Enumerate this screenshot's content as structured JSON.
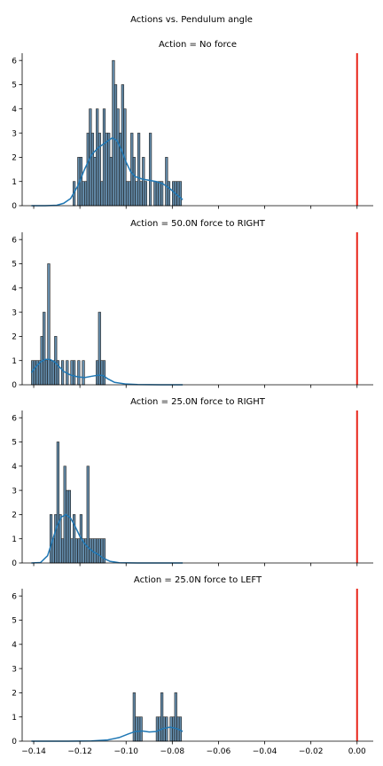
{
  "figure": {
    "suptitle": "Actions vs. Pendulum angle",
    "colors": {
      "bar_fill": "#3d6f96",
      "bar_edge": "#1c1c1c",
      "kde": "#1f77b4",
      "ref_line": "#e8251a"
    }
  },
  "chart_data": [
    {
      "type": "histogram+kde",
      "title": "Action = No force",
      "xlim": [
        -0.145,
        0.007
      ],
      "ylim": [
        0,
        6.3
      ],
      "xticks": [
        -0.14,
        -0.12,
        -0.1,
        -0.08,
        -0.06,
        -0.04,
        -0.02,
        0.0
      ],
      "xtick_labels": [],
      "yticks": [
        0,
        1,
        2,
        3,
        4,
        5,
        6
      ],
      "ytick_labels": [
        "0",
        "1",
        "2",
        "3",
        "4",
        "5",
        "6"
      ],
      "ref_line_x": 0.0,
      "bins": [
        [
          -0.1225,
          1
        ],
        [
          -0.1205,
          2
        ],
        [
          -0.1195,
          2
        ],
        [
          -0.1185,
          1
        ],
        [
          -0.1175,
          1
        ],
        [
          -0.1165,
          3
        ],
        [
          -0.1155,
          4
        ],
        [
          -0.1145,
          3
        ],
        [
          -0.1135,
          2
        ],
        [
          -0.1125,
          4
        ],
        [
          -0.1115,
          3
        ],
        [
          -0.1105,
          1
        ],
        [
          -0.1095,
          4
        ],
        [
          -0.1085,
          3
        ],
        [
          -0.1075,
          3
        ],
        [
          -0.1065,
          2
        ],
        [
          -0.1055,
          6
        ],
        [
          -0.1045,
          5
        ],
        [
          -0.1035,
          4
        ],
        [
          -0.1025,
          3
        ],
        [
          -0.1015,
          5
        ],
        [
          -0.1005,
          4
        ],
        [
          -0.0995,
          1
        ],
        [
          -0.0985,
          1
        ],
        [
          -0.0975,
          3
        ],
        [
          -0.0965,
          2
        ],
        [
          -0.0955,
          1
        ],
        [
          -0.0945,
          3
        ],
        [
          -0.0935,
          1
        ],
        [
          -0.0925,
          2
        ],
        [
          -0.0915,
          1
        ],
        [
          -0.0895,
          3
        ],
        [
          -0.0875,
          1
        ],
        [
          -0.0865,
          1
        ],
        [
          -0.0855,
          1
        ],
        [
          -0.0845,
          1
        ],
        [
          -0.0825,
          2
        ],
        [
          -0.0815,
          1
        ],
        [
          -0.0795,
          1
        ],
        [
          -0.0785,
          1
        ],
        [
          -0.0775,
          1
        ],
        [
          -0.0765,
          1
        ]
      ],
      "kde": [
        [
          -0.141,
          0.0
        ],
        [
          -0.135,
          0.0
        ],
        [
          -0.13,
          0.02
        ],
        [
          -0.127,
          0.1
        ],
        [
          -0.124,
          0.3
        ],
        [
          -0.121,
          0.8
        ],
        [
          -0.118,
          1.5
        ],
        [
          -0.115,
          2.1
        ],
        [
          -0.112,
          2.4
        ],
        [
          -0.109,
          2.6
        ],
        [
          -0.106,
          2.8
        ],
        [
          -0.104,
          2.7
        ],
        [
          -0.102,
          2.3
        ],
        [
          -0.1,
          1.8
        ],
        [
          -0.098,
          1.4
        ],
        [
          -0.096,
          1.2
        ],
        [
          -0.093,
          1.1
        ],
        [
          -0.09,
          1.05
        ],
        [
          -0.087,
          1.0
        ],
        [
          -0.084,
          0.9
        ],
        [
          -0.081,
          0.7
        ],
        [
          -0.078,
          0.45
        ],
        [
          -0.0755,
          0.25
        ]
      ]
    },
    {
      "type": "histogram+kde",
      "title": "Action = 50.0N force to RIGHT",
      "xlim": [
        -0.145,
        0.007
      ],
      "ylim": [
        0,
        6.3
      ],
      "xticks": [
        -0.14,
        -0.12,
        -0.1,
        -0.08,
        -0.06,
        -0.04,
        -0.02,
        0.0
      ],
      "xtick_labels": [],
      "yticks": [
        0,
        1,
        2,
        3,
        4,
        5,
        6
      ],
      "ytick_labels": [
        "0",
        "1",
        "2",
        "3",
        "4",
        "5",
        "6"
      ],
      "ref_line_x": 0.0,
      "bins": [
        [
          -0.1405,
          1
        ],
        [
          -0.1395,
          1
        ],
        [
          -0.1385,
          1
        ],
        [
          -0.1375,
          1
        ],
        [
          -0.1365,
          2
        ],
        [
          -0.1355,
          3
        ],
        [
          -0.1345,
          1
        ],
        [
          -0.1335,
          5
        ],
        [
          -0.1325,
          1
        ],
        [
          -0.1315,
          1
        ],
        [
          -0.1305,
          2
        ],
        [
          -0.1295,
          1
        ],
        [
          -0.1275,
          1
        ],
        [
          -0.1255,
          1
        ],
        [
          -0.1235,
          1
        ],
        [
          -0.1225,
          1
        ],
        [
          -0.1205,
          1
        ],
        [
          -0.1185,
          1
        ],
        [
          -0.1125,
          1
        ],
        [
          -0.1115,
          3
        ],
        [
          -0.1105,
          1
        ],
        [
          -0.1095,
          1
        ]
      ],
      "kde": [
        [
          -0.141,
          0.5
        ],
        [
          -0.139,
          0.75
        ],
        [
          -0.137,
          0.95
        ],
        [
          -0.135,
          1.05
        ],
        [
          -0.133,
          1.05
        ],
        [
          -0.131,
          0.95
        ],
        [
          -0.129,
          0.75
        ],
        [
          -0.127,
          0.55
        ],
        [
          -0.124,
          0.4
        ],
        [
          -0.121,
          0.33
        ],
        [
          -0.118,
          0.3
        ],
        [
          -0.115,
          0.35
        ],
        [
          -0.112,
          0.4
        ],
        [
          -0.11,
          0.38
        ],
        [
          -0.108,
          0.25
        ],
        [
          -0.105,
          0.1
        ],
        [
          -0.1,
          0.03
        ],
        [
          -0.095,
          0.01
        ],
        [
          -0.085,
          0.0
        ],
        [
          -0.0755,
          0.0
        ]
      ]
    },
    {
      "type": "histogram+kde",
      "title": "Action = 25.0N force to RIGHT",
      "xlim": [
        -0.145,
        0.007
      ],
      "ylim": [
        0,
        6.3
      ],
      "xticks": [
        -0.14,
        -0.12,
        -0.1,
        -0.08,
        -0.06,
        -0.04,
        -0.02,
        0.0
      ],
      "xtick_labels": [],
      "yticks": [
        0,
        1,
        2,
        3,
        4,
        5,
        6
      ],
      "ytick_labels": [
        "0",
        "1",
        "2",
        "3",
        "4",
        "5",
        "6"
      ],
      "ref_line_x": 0.0,
      "bins": [
        [
          -0.1325,
          2
        ],
        [
          -0.1315,
          1
        ],
        [
          -0.1305,
          2
        ],
        [
          -0.1295,
          5
        ],
        [
          -0.1285,
          2
        ],
        [
          -0.1275,
          1
        ],
        [
          -0.1265,
          4
        ],
        [
          -0.1255,
          3
        ],
        [
          -0.1245,
          3
        ],
        [
          -0.1235,
          1
        ],
        [
          -0.1225,
          2
        ],
        [
          -0.1215,
          1
        ],
        [
          -0.1205,
          1
        ],
        [
          -0.1195,
          2
        ],
        [
          -0.1185,
          1
        ],
        [
          -0.1175,
          1
        ],
        [
          -0.1165,
          4
        ],
        [
          -0.1155,
          1
        ],
        [
          -0.1145,
          1
        ],
        [
          -0.1135,
          1
        ],
        [
          -0.1125,
          1
        ],
        [
          -0.1115,
          1
        ],
        [
          -0.1105,
          1
        ],
        [
          -0.1095,
          1
        ]
      ],
      "kde": [
        [
          -0.141,
          0.0
        ],
        [
          -0.137,
          0.02
        ],
        [
          -0.134,
          0.3
        ],
        [
          -0.132,
          0.9
        ],
        [
          -0.13,
          1.5
        ],
        [
          -0.128,
          1.9
        ],
        [
          -0.126,
          2.0
        ],
        [
          -0.124,
          1.85
        ],
        [
          -0.122,
          1.5
        ],
        [
          -0.12,
          1.1
        ],
        [
          -0.118,
          0.8
        ],
        [
          -0.116,
          0.6
        ],
        [
          -0.114,
          0.45
        ],
        [
          -0.112,
          0.35
        ],
        [
          -0.11,
          0.2
        ],
        [
          -0.107,
          0.07
        ],
        [
          -0.103,
          0.01
        ],
        [
          -0.095,
          0.0
        ],
        [
          -0.0755,
          0.0
        ]
      ]
    },
    {
      "type": "histogram+kde",
      "title": "Action = 25.0N force to LEFT",
      "xlim": [
        -0.145,
        0.007
      ],
      "ylim": [
        0,
        6.3
      ],
      "xticks": [
        -0.14,
        -0.12,
        -0.1,
        -0.08,
        -0.06,
        -0.04,
        -0.02,
        0.0
      ],
      "xtick_labels": [
        "−0.14",
        "−0.12",
        "−0.10",
        "−0.08",
        "−0.06",
        "−0.04",
        "−0.02",
        "0.00"
      ],
      "yticks": [
        0,
        1,
        2,
        3,
        4,
        5,
        6
      ],
      "ytick_labels": [
        "0",
        "1",
        "2",
        "3",
        "4",
        "5",
        "6"
      ],
      "ref_line_x": 0.0,
      "bins": [
        [
          -0.0965,
          2
        ],
        [
          -0.0955,
          1
        ],
        [
          -0.0945,
          1
        ],
        [
          -0.0935,
          1
        ],
        [
          -0.0865,
          1
        ],
        [
          -0.0855,
          1
        ],
        [
          -0.0845,
          2
        ],
        [
          -0.0835,
          1
        ],
        [
          -0.0825,
          1
        ],
        [
          -0.0805,
          1
        ],
        [
          -0.0795,
          1
        ],
        [
          -0.0785,
          2
        ],
        [
          -0.0775,
          1
        ],
        [
          -0.0765,
          1
        ]
      ],
      "kde": [
        [
          -0.141,
          0.0
        ],
        [
          -0.125,
          0.0
        ],
        [
          -0.115,
          0.01
        ],
        [
          -0.108,
          0.05
        ],
        [
          -0.103,
          0.15
        ],
        [
          -0.099,
          0.3
        ],
        [
          -0.096,
          0.4
        ],
        [
          -0.093,
          0.42
        ],
        [
          -0.09,
          0.38
        ],
        [
          -0.087,
          0.4
        ],
        [
          -0.084,
          0.52
        ],
        [
          -0.081,
          0.58
        ],
        [
          -0.078,
          0.52
        ],
        [
          -0.0755,
          0.4
        ]
      ]
    }
  ]
}
